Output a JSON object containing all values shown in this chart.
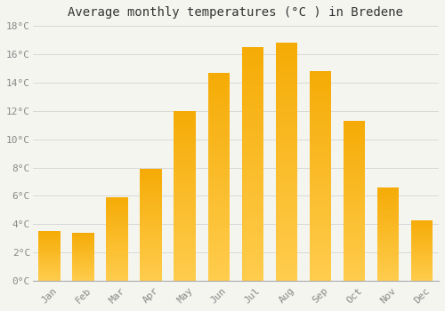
{
  "months": [
    "Jan",
    "Feb",
    "Mar",
    "Apr",
    "May",
    "Jun",
    "Jul",
    "Aug",
    "Sep",
    "Oct",
    "Nov",
    "Dec"
  ],
  "temperatures": [
    3.5,
    3.4,
    5.9,
    7.9,
    12.0,
    14.7,
    16.5,
    16.8,
    14.8,
    11.3,
    6.6,
    4.3
  ],
  "title": "Average monthly temperatures (°C ) in Bredene",
  "ylim": [
    0,
    18
  ],
  "yticks": [
    0,
    2,
    4,
    6,
    8,
    10,
    12,
    14,
    16,
    18
  ],
  "ytick_labels": [
    "0°C",
    "2°C",
    "4°C",
    "6°C",
    "8°C",
    "10°C",
    "12°C",
    "14°C",
    "16°C",
    "18°C"
  ],
  "background_color": "#f5f5f0",
  "plot_bg_color": "#f5f5f0",
  "grid_color": "#d8d8d8",
  "bar_color_bottom": "#FFC84A",
  "bar_color_top": "#F5A800",
  "title_fontsize": 10,
  "tick_fontsize": 8,
  "tick_color": "#888888",
  "font_family": "monospace",
  "bar_width": 0.65
}
